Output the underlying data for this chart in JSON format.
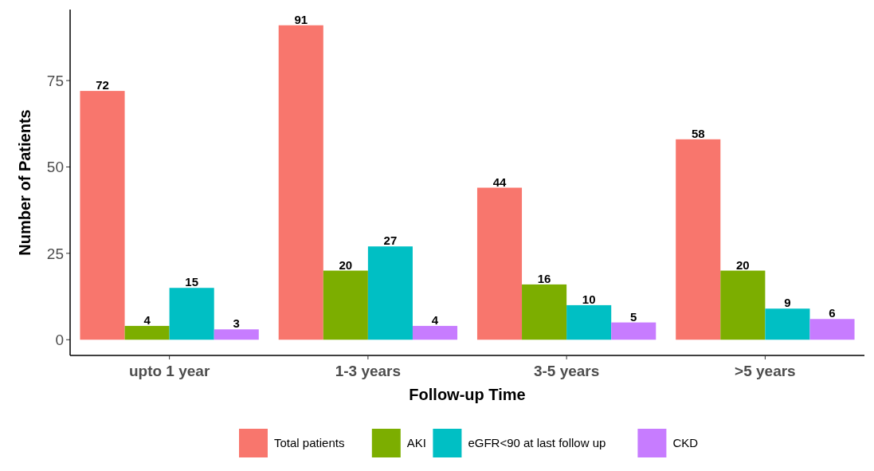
{
  "chart_data": {
    "type": "bar",
    "xlabel": "Follow-up Time",
    "ylabel": "Number of Patients",
    "categories": [
      "upto 1 year",
      "1-3 years",
      "3-5 years",
      ">5 years"
    ],
    "series": [
      {
        "name": "Total patients",
        "color": "#f8766d",
        "values": [
          72,
          91,
          44,
          58
        ]
      },
      {
        "name": "AKI",
        "color": "#7cae00",
        "values": [
          4,
          20,
          16,
          20
        ]
      },
      {
        "name": "eGFR<90 at last follow up",
        "color": "#00bfc4",
        "values": [
          15,
          27,
          10,
          9
        ]
      },
      {
        "name": "CKD",
        "color": "#c77cff",
        "values": [
          3,
          4,
          5,
          6
        ]
      }
    ],
    "ylim": [
      -4.55,
      95.55
    ],
    "yticks": [
      0,
      25,
      50,
      75
    ],
    "grid": false,
    "legend": "bottom",
    "data_labels": true
  }
}
